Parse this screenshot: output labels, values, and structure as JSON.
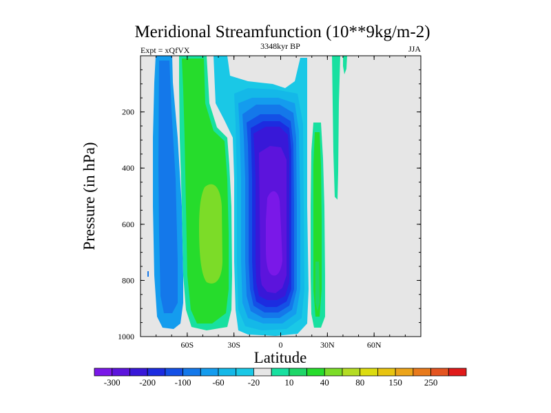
{
  "chart_data": {
    "type": "filled-contour",
    "title": "Meridional Streamfunction (10**9kg/m-2)",
    "subtitle_left": "Expt = xQfVX",
    "subtitle_center": "3348kyr BP",
    "subtitle_right": "JJA",
    "xlabel": "Latitude",
    "ylabel": "Pressure (in hPa)",
    "xlim": [
      -90,
      90
    ],
    "ylim": [
      1000,
      0
    ],
    "x_ticks": [
      {
        "value": -60,
        "label": "60S"
      },
      {
        "value": -30,
        "label": "30S"
      },
      {
        "value": 0,
        "label": "0"
      },
      {
        "value": 30,
        "label": "30N"
      },
      {
        "value": 60,
        "label": "60N"
      }
    ],
    "y_ticks": [
      {
        "value": 200,
        "label": "200"
      },
      {
        "value": 400,
        "label": "400"
      },
      {
        "value": 600,
        "label": "600"
      },
      {
        "value": 800,
        "label": "800"
      },
      {
        "value": 1000,
        "label": "1000"
      }
    ],
    "background_color": "#e6e6e6",
    "colorbar": {
      "levels_labeled": [
        "-300",
        "-200",
        "-100",
        "-60",
        "-20",
        "10",
        "40",
        "80",
        "150",
        "250"
      ],
      "colors": [
        "#7a18e8",
        "#5c14dc",
        "#3818d8",
        "#1c2ce0",
        "#1450e6",
        "#1478ea",
        "#149cee",
        "#14b8e8",
        "#1ac8e6",
        "#e6e6e6",
        "#18e0a0",
        "#1ed668",
        "#26dc2c",
        "#7cdc28",
        "#b4dc24",
        "#dcdc10",
        "#e8c410",
        "#eca41a",
        "#e87a1c",
        "#e45420",
        "#e01a1a"
      ]
    },
    "regions": [
      {
        "name": "southern-polar-negative-cell",
        "value": -20,
        "color": "#149cee",
        "lat_range": [
          -80,
          -70
        ],
        "p_range": [
          0,
          980
        ]
      },
      {
        "name": "southern-polar-inner",
        "value": -40,
        "color": "#1478ea",
        "lat_range": [
          -78,
          -73
        ],
        "p_range": [
          40,
          960
        ]
      },
      {
        "name": "southern-midlat-positive-cell",
        "value": 40,
        "color": "#26dc2c",
        "lat_range": [
          -68,
          -40
        ],
        "p_range": [
          0,
          980
        ]
      },
      {
        "name": "southern-midlat-core",
        "value": 80,
        "color": "#7cdc28",
        "lat_range": [
          -58,
          -46
        ],
        "p_range": [
          450,
          860
        ]
      },
      {
        "name": "hadley-negative-cell",
        "value": -200,
        "color": "#5c14dc",
        "lat_range": [
          -30,
          15
        ],
        "p_range": [
          0,
          990
        ]
      },
      {
        "name": "hadley-core",
        "value": -300,
        "color": "#7a18e8",
        "lat_range": [
          -14,
          4
        ],
        "p_range": [
          400,
          880
        ]
      },
      {
        "name": "northern-tropical-positive",
        "value": 10,
        "color": "#18e0a0",
        "lat_range": [
          21,
          28
        ],
        "p_range": [
          230,
          980
        ]
      },
      {
        "name": "northern-upper-positive",
        "value": 10,
        "color": "#18e0a0",
        "lat_range": [
          34,
          42
        ],
        "p_range": [
          0,
          500
        ]
      }
    ]
  }
}
